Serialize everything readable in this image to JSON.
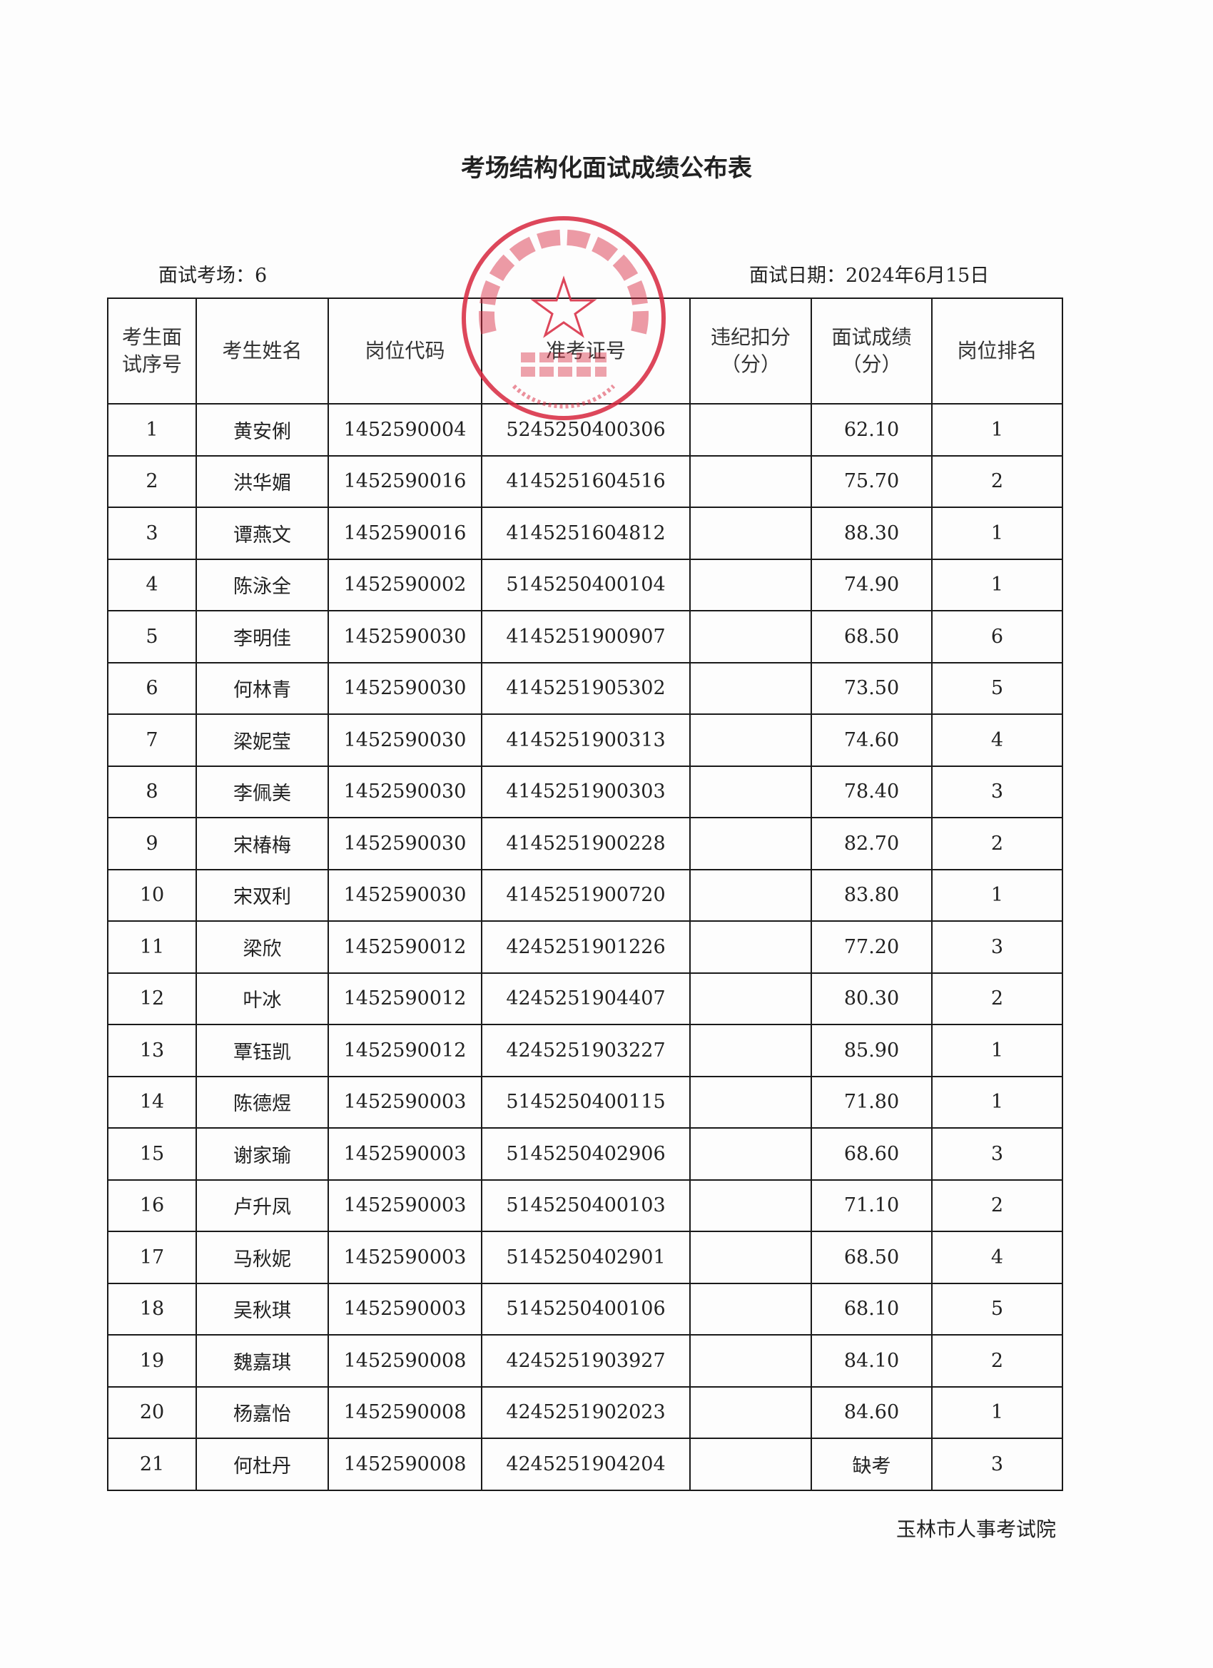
{
  "title": "考场结构化面试成绩公布表",
  "exam_room_label": "面试考场：6",
  "exam_date_label": "面试日期：2024年6月15日",
  "columns": [
    "考生面试序号",
    "考生姓名",
    "岗位代码",
    "准考证号",
    "违纪扣分（分）",
    "面试成绩（分）",
    "岗位排名"
  ],
  "rows": [
    {
      "no": "1",
      "name": "黄安俐",
      "post": "1452590004",
      "ticket": "5245250400306",
      "deduct": "",
      "score": "62.10",
      "rank": "1"
    },
    {
      "no": "2",
      "name": "洪华媚",
      "post": "1452590016",
      "ticket": "4145251604516",
      "deduct": "",
      "score": "75.70",
      "rank": "2"
    },
    {
      "no": "3",
      "name": "谭燕文",
      "post": "1452590016",
      "ticket": "4145251604812",
      "deduct": "",
      "score": "88.30",
      "rank": "1"
    },
    {
      "no": "4",
      "name": "陈泳全",
      "post": "1452590002",
      "ticket": "5145250400104",
      "deduct": "",
      "score": "74.90",
      "rank": "1"
    },
    {
      "no": "5",
      "name": "李明佳",
      "post": "1452590030",
      "ticket": "4145251900907",
      "deduct": "",
      "score": "68.50",
      "rank": "6"
    },
    {
      "no": "6",
      "name": "何林青",
      "post": "1452590030",
      "ticket": "4145251905302",
      "deduct": "",
      "score": "73.50",
      "rank": "5"
    },
    {
      "no": "7",
      "name": "梁妮莹",
      "post": "1452590030",
      "ticket": "4145251900313",
      "deduct": "",
      "score": "74.60",
      "rank": "4"
    },
    {
      "no": "8",
      "name": "李佩美",
      "post": "1452590030",
      "ticket": "4145251900303",
      "deduct": "",
      "score": "78.40",
      "rank": "3"
    },
    {
      "no": "9",
      "name": "宋椿梅",
      "post": "1452590030",
      "ticket": "4145251900228",
      "deduct": "",
      "score": "82.70",
      "rank": "2"
    },
    {
      "no": "10",
      "name": "宋双利",
      "post": "1452590030",
      "ticket": "4145251900720",
      "deduct": "",
      "score": "83.80",
      "rank": "1"
    },
    {
      "no": "11",
      "name": "梁欣",
      "post": "1452590012",
      "ticket": "4245251901226",
      "deduct": "",
      "score": "77.20",
      "rank": "3"
    },
    {
      "no": "12",
      "name": "叶冰",
      "post": "1452590012",
      "ticket": "4245251904407",
      "deduct": "",
      "score": "80.30",
      "rank": "2"
    },
    {
      "no": "13",
      "name": "覃钰凯",
      "post": "1452590012",
      "ticket": "4245251903227",
      "deduct": "",
      "score": "85.90",
      "rank": "1"
    },
    {
      "no": "14",
      "name": "陈德煜",
      "post": "1452590003",
      "ticket": "5145250400115",
      "deduct": "",
      "score": "71.80",
      "rank": "1"
    },
    {
      "no": "15",
      "name": "谢家瑜",
      "post": "1452590003",
      "ticket": "5145250402906",
      "deduct": "",
      "score": "68.60",
      "rank": "3"
    },
    {
      "no": "16",
      "name": "卢升凤",
      "post": "1452590003",
      "ticket": "5145250400103",
      "deduct": "",
      "score": "71.10",
      "rank": "2"
    },
    {
      "no": "17",
      "name": "马秋妮",
      "post": "1452590003",
      "ticket": "5145250402901",
      "deduct": "",
      "score": "68.50",
      "rank": "4"
    },
    {
      "no": "18",
      "name": "吴秋琪",
      "post": "1452590003",
      "ticket": "5145250400106",
      "deduct": "",
      "score": "68.10",
      "rank": "5"
    },
    {
      "no": "19",
      "name": "魏嘉琪",
      "post": "1452590008",
      "ticket": "4245251903927",
      "deduct": "",
      "score": "84.10",
      "rank": "2"
    },
    {
      "no": "20",
      "name": "杨嘉怡",
      "post": "1452590008",
      "ticket": "4245251902023",
      "deduct": "",
      "score": "84.60",
      "rank": "1"
    },
    {
      "no": "21",
      "name": "何杜丹",
      "post": "1452590008",
      "ticket": "4245251904204",
      "deduct": "",
      "score": "缺考",
      "rank": "3"
    }
  ],
  "footer": "玉林市人事考试院",
  "stamp": {
    "ring_text": "玉林市人事考试院",
    "center_text": "考试专用章",
    "serial": "4509024121936",
    "color": "#d8283f"
  }
}
